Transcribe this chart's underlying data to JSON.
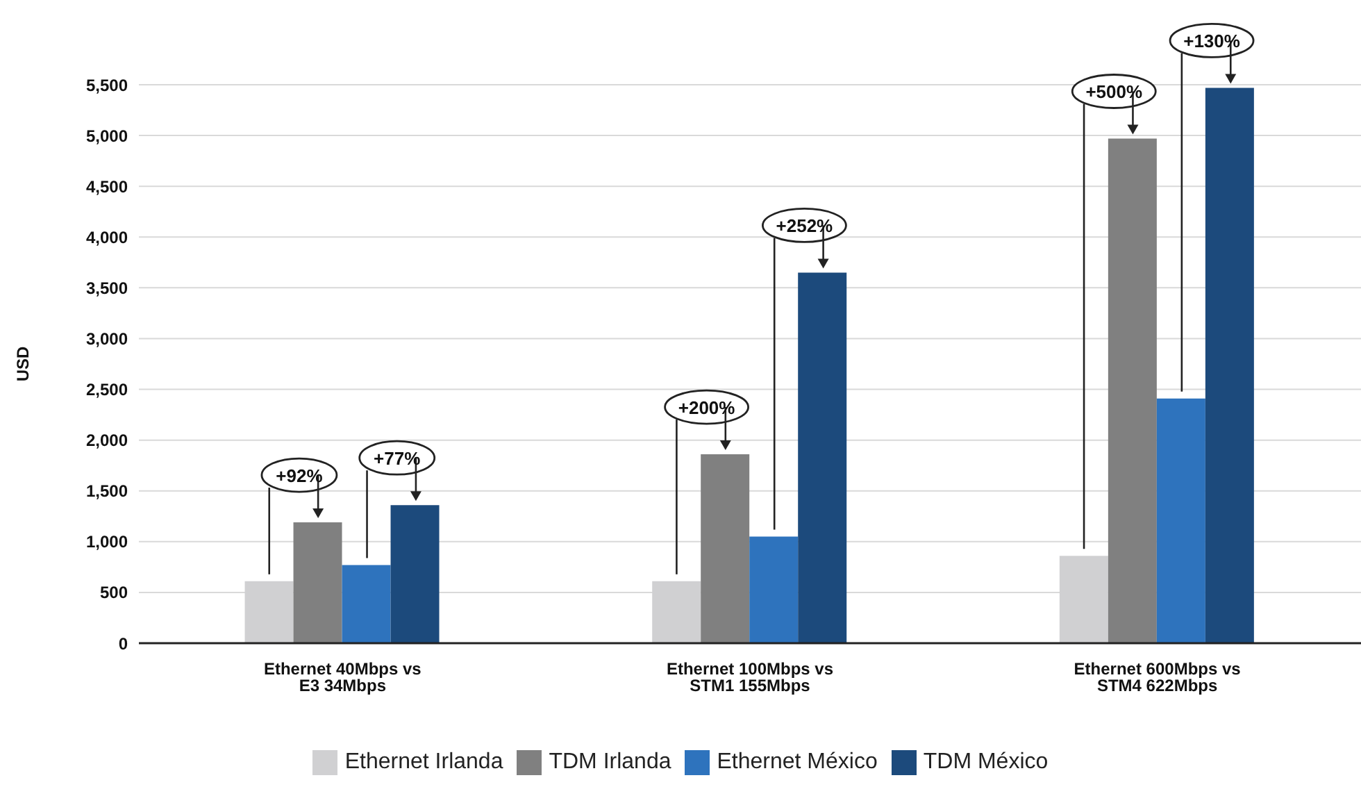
{
  "chart_data": {
    "type": "bar",
    "ylabel": "USD",
    "categories": [
      "Ethernet 40Mbps vs E3 34Mbps",
      "Ethernet 100Mbps vs STM1 155Mbps",
      "Ethernet 600Mbps vs STM4 622Mbps"
    ],
    "series": [
      {
        "name": "Ethernet Irlanda",
        "color": "#d0d0d2",
        "values": [
          610,
          610,
          860
        ]
      },
      {
        "name": "TDM Irlanda",
        "color": "#808080",
        "values": [
          1190,
          1860,
          4970
        ]
      },
      {
        "name": "Ethernet México",
        "color": "#2e73bd",
        "values": [
          770,
          1050,
          2410
        ]
      },
      {
        "name": "TDM México",
        "color": "#1c4a7c",
        "values": [
          1360,
          3650,
          5470
        ]
      }
    ],
    "ylim": [
      0,
      5500
    ],
    "yticks": [
      0,
      500,
      {
        "value": 1000,
        "label": "1,000"
      },
      {
        "value": 1500,
        "label": "1,500"
      },
      {
        "value": 2000,
        "label": "2,000"
      },
      {
        "value": 2500,
        "label": "2,500"
      },
      {
        "value": 3000,
        "label": "3,000"
      },
      {
        "value": 3500,
        "label": "3,500"
      },
      {
        "value": 4000,
        "label": "4,000"
      },
      {
        "value": 4500,
        "label": "4,500"
      },
      {
        "value": 5000,
        "label": "5,000"
      },
      {
        "value": 5500,
        "label": "5,500"
      }
    ],
    "grid": "y",
    "legend": "bottom",
    "annotations": [
      "+92%",
      "+77%",
      "+200%",
      "+252%",
      "+500%",
      "+130%"
    ]
  }
}
